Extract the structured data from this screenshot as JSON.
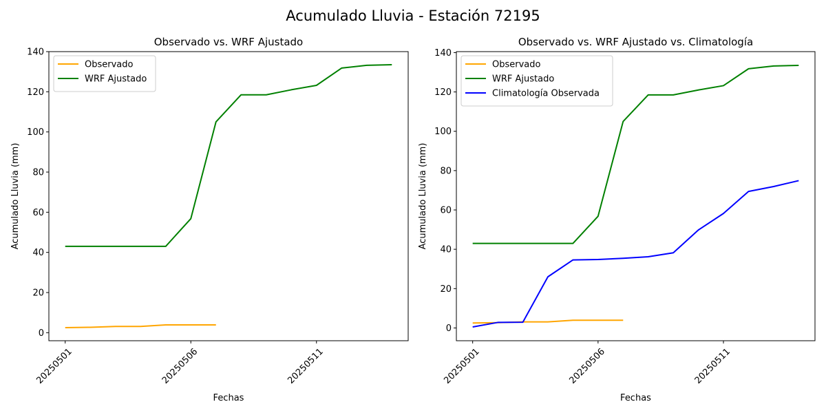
{
  "figure": {
    "title": "Acumulado Lluvia - Estación 72195"
  },
  "chart_data": [
    {
      "type": "line",
      "title": "Observado vs. WRF Ajustado",
      "xlabel": "Fechas",
      "ylabel": "Acumulado Lluvia (mm)",
      "x": [
        "20250501",
        "20250502",
        "20250503",
        "20250504",
        "20250505",
        "20250506",
        "20250507",
        "20250508",
        "20250509",
        "20250510",
        "20250511",
        "20250512",
        "20250513",
        "20250514"
      ],
      "x_ticks": [
        "20250501",
        "20250506",
        "20250511"
      ],
      "y_ticks": [
        0,
        20,
        40,
        60,
        80,
        100,
        120,
        140
      ],
      "ylim": [
        -4,
        140
      ],
      "grid": false,
      "legend_position": "top-left",
      "series": [
        {
          "name": "Observado",
          "color": "#ffa500",
          "values": [
            2.5,
            2.7,
            3.1,
            3.1,
            3.9,
            3.9,
            3.9,
            null,
            null,
            null,
            null,
            null,
            null,
            null
          ]
        },
        {
          "name": "WRF Ajustado",
          "color": "#008000",
          "values": [
            43.0,
            43.0,
            43.0,
            43.0,
            43.0,
            56.8,
            105.0,
            118.5,
            118.5,
            121.0,
            123.2,
            131.8,
            133.2,
            133.5
          ]
        }
      ]
    },
    {
      "type": "line",
      "title": "Observado vs. WRF Ajustado vs. Climatología",
      "xlabel": "Fechas",
      "ylabel": "Acumulado Lluvia (mm)",
      "x": [
        "20250501",
        "20250502",
        "20250503",
        "20250504",
        "20250505",
        "20250506",
        "20250507",
        "20250508",
        "20250509",
        "20250510",
        "20250511",
        "20250512",
        "20250513",
        "20250514"
      ],
      "x_ticks": [
        "20250501",
        "20250506",
        "20250511"
      ],
      "y_ticks": [
        0,
        20,
        40,
        60,
        80,
        100,
        120,
        140
      ],
      "ylim": [
        -6.5,
        140.5
      ],
      "grid": false,
      "legend_position": "top-left",
      "series": [
        {
          "name": "Observado",
          "color": "#ffa500",
          "values": [
            2.5,
            2.7,
            3.1,
            3.1,
            3.9,
            3.9,
            3.9,
            null,
            null,
            null,
            null,
            null,
            null,
            null
          ]
        },
        {
          "name": "WRF Ajustado",
          "color": "#008000",
          "values": [
            43.0,
            43.0,
            43.0,
            43.0,
            43.0,
            56.8,
            105.0,
            118.5,
            118.5,
            121.0,
            123.2,
            131.8,
            133.2,
            133.5
          ]
        },
        {
          "name": "Climatología Observada",
          "color": "#0000ff",
          "values": [
            0.5,
            2.8,
            2.9,
            26.0,
            34.6,
            34.8,
            35.4,
            36.2,
            38.2,
            49.8,
            58.2,
            69.4,
            71.9,
            74.9
          ]
        }
      ]
    }
  ]
}
